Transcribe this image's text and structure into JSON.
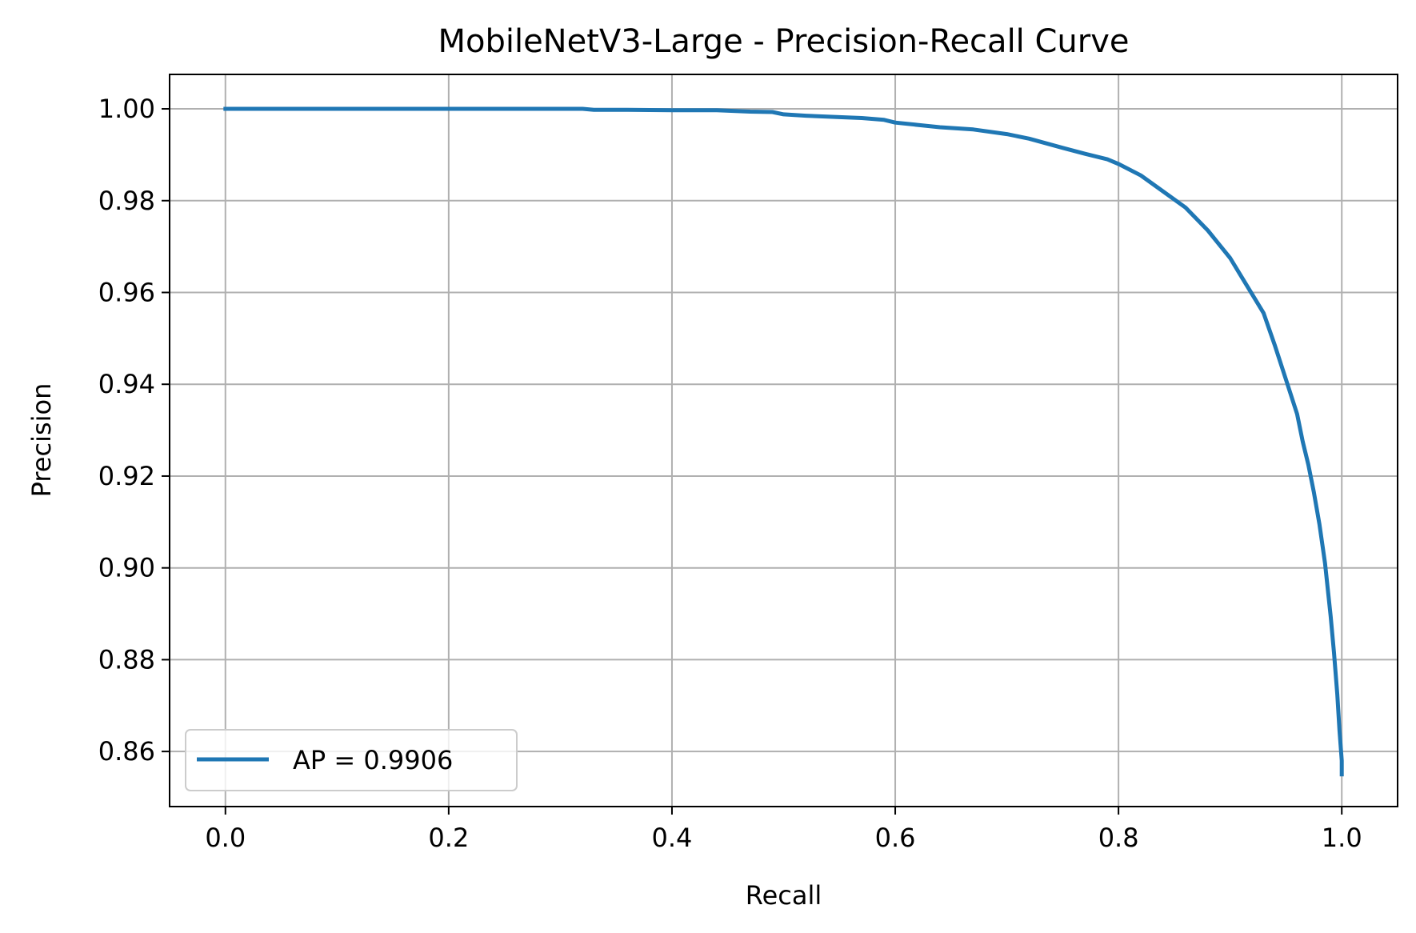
{
  "chart_data": {
    "type": "line",
    "title": "MobileNetV3-Large - Precision-Recall Curve",
    "xlabel": "Recall",
    "ylabel": "Precision",
    "xlim": [
      -0.05,
      1.05
    ],
    "ylim": [
      0.848,
      1.0075
    ],
    "grid": true,
    "legend_position": "lower-left",
    "xticks": [
      0.0,
      0.2,
      0.4,
      0.6,
      0.8,
      1.0
    ],
    "xtick_labels": [
      "0.0",
      "0.2",
      "0.4",
      "0.6",
      "0.8",
      "1.0"
    ],
    "yticks": [
      0.86,
      0.88,
      0.9,
      0.92,
      0.94,
      0.96,
      0.98,
      1.0
    ],
    "ytick_labels": [
      "0.86",
      "0.88",
      "0.90",
      "0.92",
      "0.94",
      "0.96",
      "0.98",
      "1.00"
    ],
    "series": [
      {
        "name": "AP = 0.9906",
        "color": "#1f77b4",
        "x": [
          0.0,
          0.1,
          0.2,
          0.3,
          0.32,
          0.33,
          0.36,
          0.4,
          0.44,
          0.47,
          0.49,
          0.5,
          0.52,
          0.55,
          0.57,
          0.59,
          0.6,
          0.62,
          0.64,
          0.67,
          0.7,
          0.72,
          0.75,
          0.77,
          0.79,
          0.8,
          0.82,
          0.84,
          0.86,
          0.88,
          0.9,
          0.91,
          0.92,
          0.93,
          0.94,
          0.95,
          0.96,
          0.965,
          0.97,
          0.975,
          0.98,
          0.985,
          0.99,
          0.993,
          0.996,
          0.998,
          1.0,
          1.0
        ],
        "y": [
          1.0,
          1.0,
          1.0,
          1.0,
          1.0,
          0.9998,
          0.9998,
          0.9997,
          0.9997,
          0.9994,
          0.9993,
          0.9988,
          0.9985,
          0.9982,
          0.998,
          0.9976,
          0.997,
          0.9965,
          0.996,
          0.9955,
          0.9945,
          0.9935,
          0.9915,
          0.9902,
          0.989,
          0.988,
          0.9855,
          0.982,
          0.9785,
          0.9735,
          0.9675,
          0.9635,
          0.9595,
          0.9555,
          0.9485,
          0.941,
          0.9335,
          0.9275,
          0.9225,
          0.9165,
          0.9095,
          0.901,
          0.8895,
          0.8815,
          0.8725,
          0.8645,
          0.858,
          0.855
        ]
      }
    ]
  }
}
